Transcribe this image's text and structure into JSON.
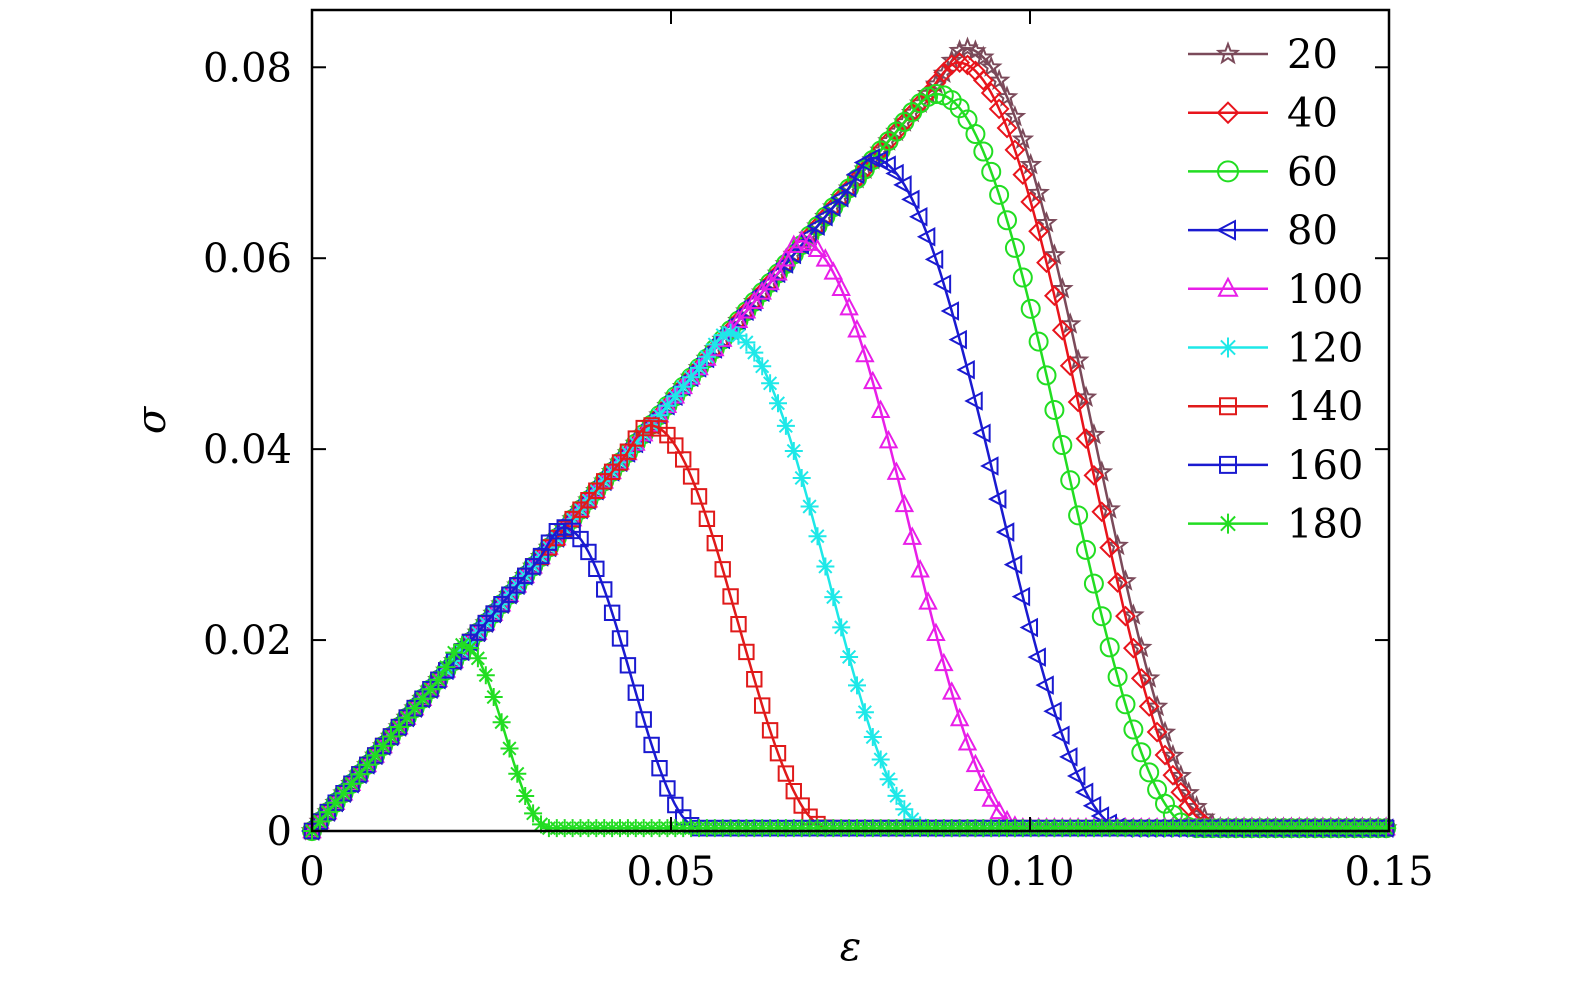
{
  "chart_data": {
    "type": "line",
    "title": "",
    "xlabel": "ε",
    "ylabel": "σ",
    "xlim": [
      0,
      0.15
    ],
    "ylim": [
      0,
      0.086
    ],
    "xticks": [
      0,
      0.05,
      0.1,
      0.15
    ],
    "xtick_labels": [
      "0",
      "0.05",
      "0.10",
      "0.15"
    ],
    "yticks": [
      0,
      0.02,
      0.04,
      0.06,
      0.08
    ],
    "ytick_labels": [
      "0",
      "0.02",
      "0.04",
      "0.06",
      "0.08"
    ],
    "grid": false,
    "legend_position": "top-right",
    "slope": 0.9,
    "series": [
      {
        "name": "20",
        "color": "#7b4a5a",
        "marker": "star",
        "peak_x": 0.091,
        "peak_y": 0.082,
        "end_x": 0.127
      },
      {
        "name": "40",
        "color": "#e8141c",
        "marker": "diamond",
        "peak_x": 0.09,
        "peak_y": 0.0805,
        "end_x": 0.126
      },
      {
        "name": "60",
        "color": "#22dd22",
        "marker": "circle",
        "peak_x": 0.087,
        "peak_y": 0.0772,
        "end_x": 0.123
      },
      {
        "name": "80",
        "color": "#1a1ad0",
        "marker": "triangle-left",
        "peak_x": 0.078,
        "peak_y": 0.0705,
        "end_x": 0.113
      },
      {
        "name": "100",
        "color": "#e81ee8",
        "marker": "triangle-up",
        "peak_x": 0.068,
        "peak_y": 0.0618,
        "end_x": 0.099
      },
      {
        "name": "120",
        "color": "#1ee8e8",
        "marker": "asterisk",
        "peak_x": 0.058,
        "peak_y": 0.0522,
        "end_x": 0.086
      },
      {
        "name": "140",
        "color": "#e01a1a",
        "marker": "square",
        "peak_x": 0.047,
        "peak_y": 0.0425,
        "end_x": 0.072
      },
      {
        "name": "160",
        "color": "#1a1ad0",
        "marker": "square",
        "peak_x": 0.035,
        "peak_y": 0.0318,
        "end_x": 0.054
      },
      {
        "name": "180",
        "color": "#22dd22",
        "marker": "asterisk",
        "peak_x": 0.021,
        "peak_y": 0.0195,
        "end_x": 0.033
      }
    ]
  }
}
